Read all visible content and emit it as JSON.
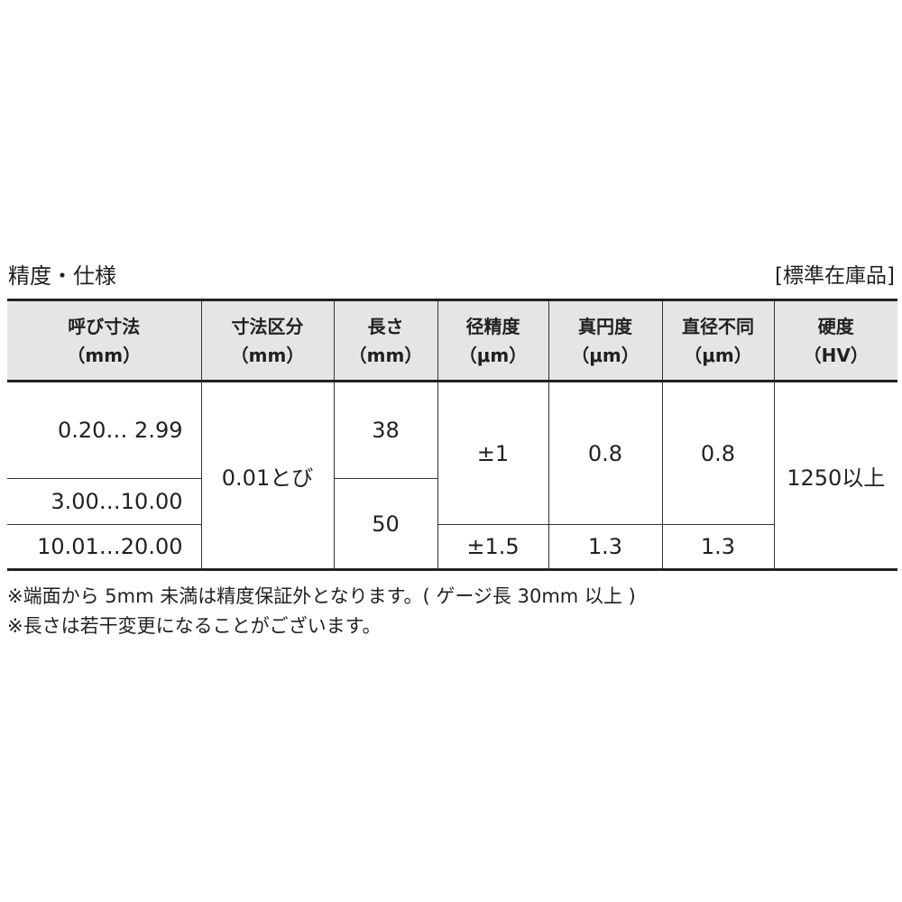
{
  "title": "精度・仕様",
  "stock_label": "[標準在庫品]",
  "headers": [
    {
      "line1": "呼び寸法",
      "line2": "（mm）"
    },
    {
      "line1": "寸法区分",
      "line2": "（mm）"
    },
    {
      "line1": "長さ",
      "line2": "（mm）"
    },
    {
      "line1": "径精度",
      "line2": "（μm）"
    },
    {
      "line1": "真円度",
      "line2": "（μm）"
    },
    {
      "line1": "直径不同",
      "line2": "（μm）"
    },
    {
      "line1": "硬度",
      "line2": "（HV）"
    }
  ],
  "rows": {
    "nominal": [
      "0.20…  2.99",
      "3.00…10.00",
      "10.01…20.00"
    ],
    "division": "0.01とび",
    "length": [
      "38",
      "50"
    ],
    "diameter_accuracy": [
      "±1",
      "±1.5"
    ],
    "roundness": [
      "0.8",
      "1.3"
    ],
    "diameter_variation": [
      "0.8",
      "1.3"
    ],
    "hardness": "1250以上"
  },
  "notes": [
    "※端面から 5mm 未満は精度保証外となります。( ゲージ長 30mm 以上 )",
    "※長さは若干変更になることがございます。"
  ]
}
